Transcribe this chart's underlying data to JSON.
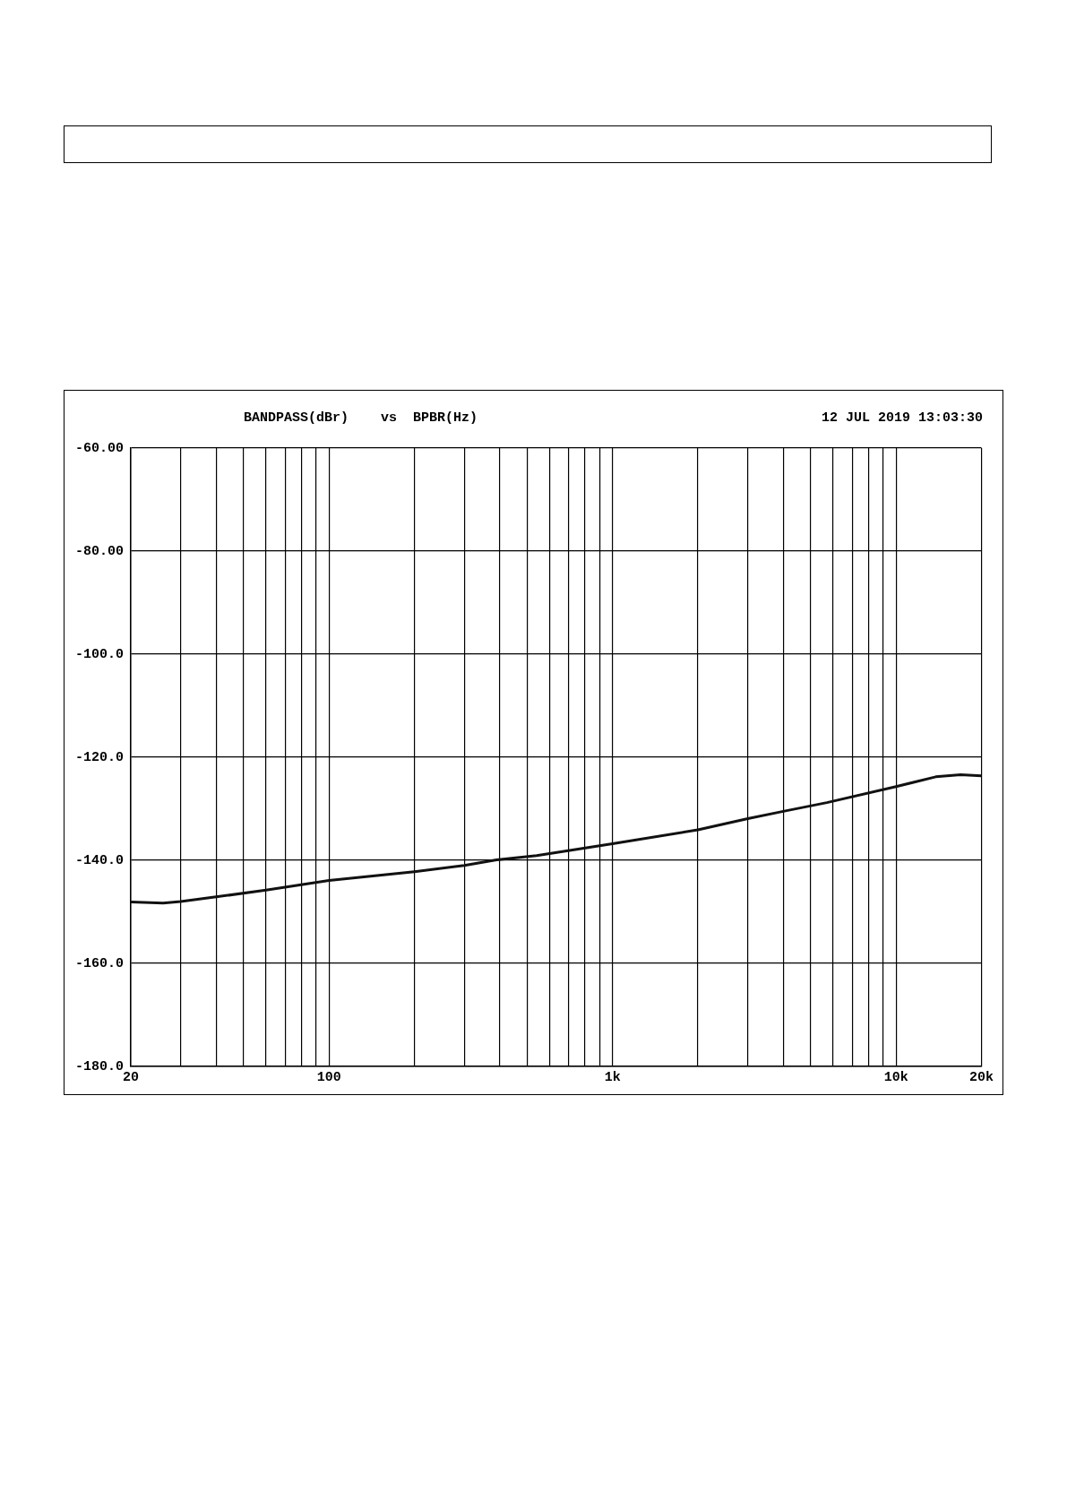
{
  "chart_data": {
    "type": "line",
    "title": "BANDPASS(dBr)    vs  BPBR(Hz)",
    "annotations": [
      "12 JUL 2019 13:03:30"
    ],
    "log": "x",
    "grid": true,
    "legend": false,
    "marker": "none",
    "line_style": "solid",
    "xlim": [
      20,
      20000
    ],
    "ylim": [
      -180,
      -60
    ],
    "xticks": [
      20,
      {
        "value": 30,
        "label": null
      },
      {
        "value": 40,
        "label": null
      },
      {
        "value": 50,
        "label": null
      },
      {
        "value": 60,
        "label": null
      },
      {
        "value": 70,
        "label": null
      },
      {
        "value": 80,
        "label": null
      },
      {
        "value": 90,
        "label": null
      },
      100,
      {
        "value": 200,
        "label": null
      },
      {
        "value": 300,
        "label": null
      },
      {
        "value": 400,
        "label": null
      },
      {
        "value": 500,
        "label": null
      },
      {
        "value": 600,
        "label": null
      },
      {
        "value": 700,
        "label": null
      },
      {
        "value": 800,
        "label": null
      },
      {
        "value": 900,
        "label": null
      },
      {
        "value": 1000,
        "label": "1k"
      },
      {
        "value": 2000,
        "label": null
      },
      {
        "value": 3000,
        "label": null
      },
      {
        "value": 4000,
        "label": null
      },
      {
        "value": 5000,
        "label": null
      },
      {
        "value": 6000,
        "label": null
      },
      {
        "value": 7000,
        "label": null
      },
      {
        "value": 8000,
        "label": null
      },
      {
        "value": 9000,
        "label": null
      },
      {
        "value": 10000,
        "label": "10k"
      },
      {
        "value": 20000,
        "label": "20k"
      }
    ],
    "yticks": [
      {
        "value": -60,
        "label": "-60.00"
      },
      {
        "value": -80,
        "label": "-80.00"
      },
      {
        "value": -100,
        "label": "-100.0"
      },
      {
        "value": -120,
        "label": "-120.0"
      },
      {
        "value": -140,
        "label": "-140.0"
      },
      {
        "value": -160,
        "label": "-160.0"
      },
      {
        "value": -180,
        "label": "-180.0"
      }
    ],
    "series": [
      {
        "color": "#111111",
        "x": [
          20,
          26,
          30,
          40,
          60,
          100,
          200,
          300,
          390,
          540,
          1000,
          2000,
          3000,
          4000,
          5700,
          10000,
          13800,
          16900,
          20000
        ],
        "values": [
          -148.1,
          -148.3,
          -148,
          -147.1,
          -145.8,
          -143.9,
          -142.2,
          -141,
          -139.9,
          -139.1,
          -136.8,
          -134.1,
          -131.9,
          -130.5,
          -128.8,
          -125.7,
          -123.8,
          -123.4,
          -123.6
        ]
      }
    ]
  }
}
